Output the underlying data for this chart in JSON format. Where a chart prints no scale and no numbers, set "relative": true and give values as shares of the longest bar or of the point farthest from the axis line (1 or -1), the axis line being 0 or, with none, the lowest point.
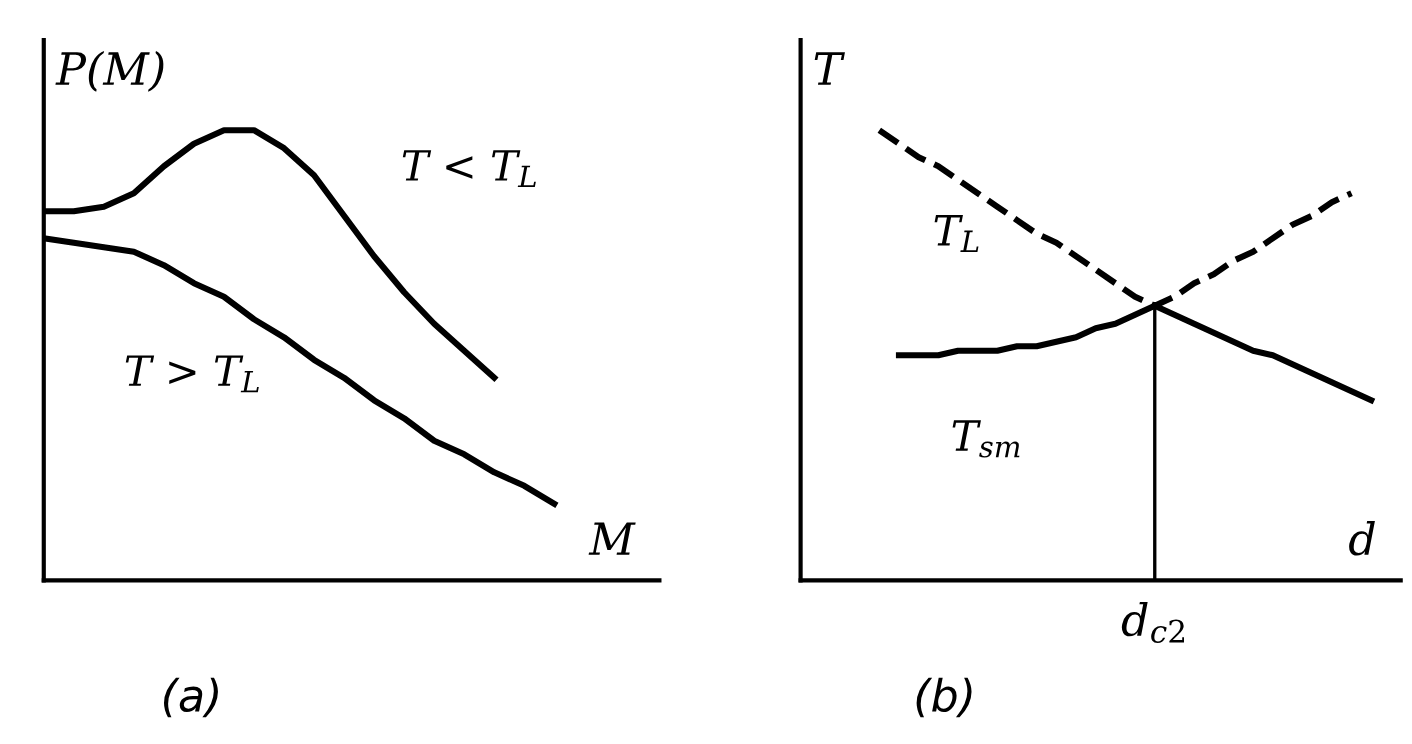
{
  "chart_data": [
    {
      "type": "line",
      "relative": true,
      "ylabel": "P(M)",
      "xlabel": "M",
      "annotations": [
        "(a)"
      ],
      "grid": false,
      "legend": false,
      "marker": "none",
      "categories": [
        null,
        null,
        null,
        null,
        null,
        null,
        null,
        null,
        null,
        null,
        null,
        null,
        null,
        null,
        null,
        null,
        null,
        null,
        null,
        null,
        null
      ],
      "series": [
        {
          "name": "T < T$_{L}$",
          "color": "#000000",
          "line_style": "solid",
          "values": [
            0.82,
            0.82,
            0.83,
            0.86,
            0.92,
            0.97,
            1.0,
            1.0,
            0.96,
            0.9,
            0.81,
            0.72,
            0.64,
            0.57,
            0.51,
            0.45,
            null,
            null,
            null,
            null,
            null
          ]
        },
        {
          "name": "T > T$_{L}$",
          "color": "#000000",
          "line_style": "solid",
          "values": [
            0.76,
            0.75,
            0.74,
            0.73,
            0.7,
            0.66,
            0.63,
            0.58,
            0.54,
            0.49,
            0.45,
            0.4,
            0.36,
            0.31,
            0.28,
            0.24,
            0.21,
            0.17,
            null,
            null,
            null
          ]
        }
      ]
    },
    {
      "type": "line",
      "relative": true,
      "ylabel": "T",
      "xlabel": "d",
      "annotations": [
        "(b)",
        "d$_{c2}$"
      ],
      "grid": false,
      "legend": false,
      "marker": "none",
      "categories": [
        null,
        null,
        null,
        null,
        null,
        null,
        null,
        null,
        null,
        null,
        null,
        null,
        null,
        null,
        null,
        null,
        null,
        null,
        null,
        null,
        null,
        null,
        null,
        null,
        null,
        null,
        null,
        null,
        null,
        null,
        null
      ],
      "series": [
        {
          "name": "T$_{L}$",
          "color": "#000000",
          "line_style": "dashed",
          "values": [
            null,
            null,
            null,
            null,
            1.0,
            0.97,
            0.94,
            0.92,
            0.89,
            0.86,
            0.83,
            0.8,
            0.77,
            0.75,
            0.72,
            0.69,
            0.66,
            0.63,
            0.61,
            0.63,
            0.66,
            0.68,
            0.71,
            0.73,
            0.76,
            0.79,
            0.81,
            0.84,
            0.86,
            null,
            null
          ]
        },
        {
          "name": "T$_{sm}$",
          "color": "#000000",
          "line_style": "solid",
          "values": [
            null,
            null,
            null,
            null,
            null,
            0.5,
            0.5,
            0.5,
            0.51,
            0.51,
            0.51,
            0.52,
            0.52,
            0.53,
            0.54,
            0.56,
            0.57,
            0.59,
            0.61,
            0.59,
            0.57,
            0.55,
            0.53,
            0.51,
            0.5,
            0.48,
            0.46,
            0.44,
            0.42,
            0.4,
            null
          ]
        }
      ]
    }
  ]
}
